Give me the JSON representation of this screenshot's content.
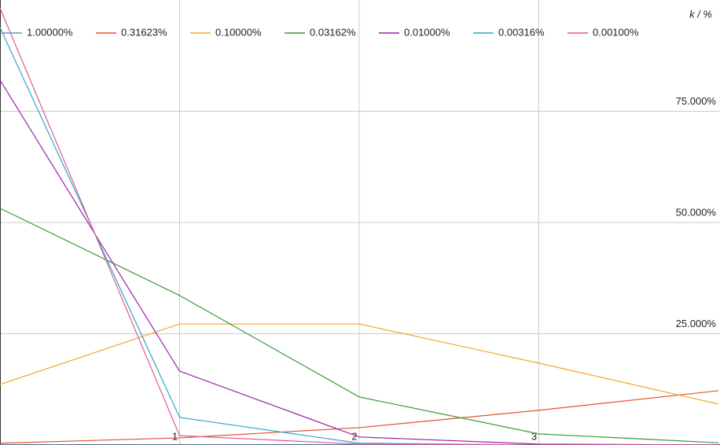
{
  "chart_data": {
    "type": "line",
    "y_axis_title": "k / %",
    "x": [
      0,
      1,
      2,
      3,
      4
    ],
    "xlim": [
      0,
      4
    ],
    "xticks": [
      1,
      2,
      3
    ],
    "ylim": [
      0,
      100
    ],
    "yticks": [
      {
        "value": 25,
        "label": "25.000%"
      },
      {
        "value": 50,
        "label": "50.000%"
      },
      {
        "value": 75,
        "label": "75.000%"
      }
    ],
    "grid": true,
    "legend": "top-left",
    "series": [
      {
        "name": "1.00000%",
        "color": "#6a8fc8",
        "values": [
          0,
          0,
          0,
          0,
          0
        ]
      },
      {
        "name": "0.31623%",
        "color": "#e0542e",
        "values": [
          0.4,
          1.6,
          3.9,
          7.8,
          12.2
        ]
      },
      {
        "name": "0.10000%",
        "color": "#f5a623",
        "values": [
          13.6,
          27.2,
          27.2,
          18.4,
          9.2
        ]
      },
      {
        "name": "0.03162%",
        "color": "#3c9a3c",
        "values": [
          53.2,
          33.6,
          10.8,
          2.5,
          0.5
        ]
      },
      {
        "name": "0.01000%",
        "color": "#9b22a8",
        "values": [
          82.0,
          16.6,
          1.8,
          0.2,
          0
        ]
      },
      {
        "name": "0.00316%",
        "color": "#2aa8c8",
        "values": [
          93.8,
          6.2,
          0.4,
          0,
          0
        ]
      },
      {
        "name": "0.00100%",
        "color": "#e05a8c",
        "values": [
          98.2,
          2.1,
          0.2,
          0,
          0
        ]
      }
    ]
  }
}
